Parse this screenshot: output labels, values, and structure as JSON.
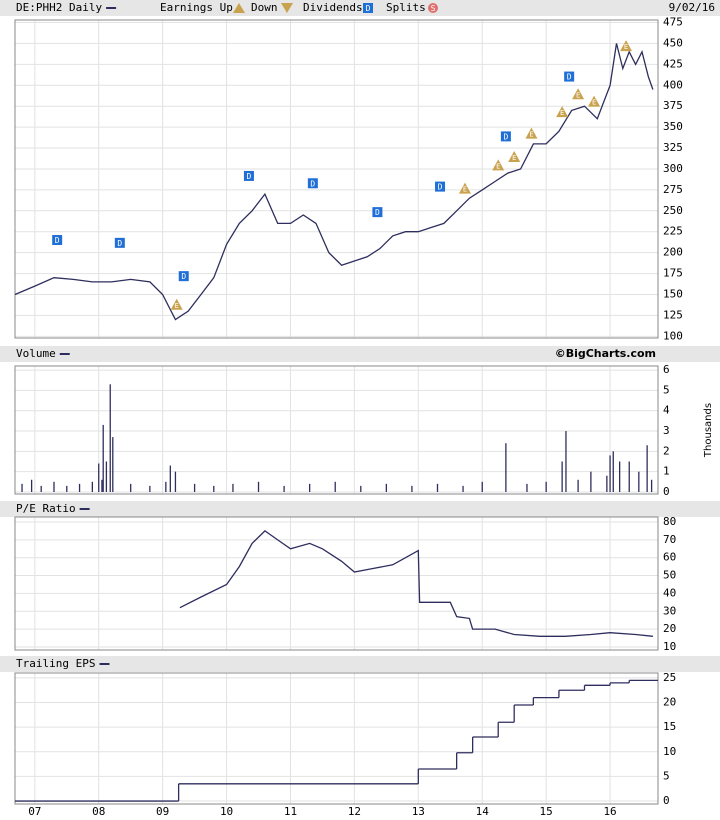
{
  "header": {
    "date": "9/02/16",
    "legend": {
      "earnings_up": "Earnings Up",
      "down": "Down",
      "dividends": "Dividends",
      "splits": "Splits"
    },
    "icons": {
      "earnings": "E",
      "dividend": "D",
      "split": "S"
    },
    "icon_colors": {
      "earnings": "#c9a24e",
      "dividend": "#1f6fd6",
      "split": "#e07070"
    }
  },
  "chart_data": [
    {
      "type": "line",
      "title": "DE:PHH2 Daily",
      "color": "#2e2e5e",
      "x": [
        2006.69,
        2007.0,
        2007.3,
        2007.6,
        2007.9,
        2008.2,
        2008.5,
        2008.8,
        2009.0,
        2009.2,
        2009.4,
        2009.6,
        2009.8,
        2010.0,
        2010.2,
        2010.4,
        2010.6,
        2010.8,
        2011.0,
        2011.2,
        2011.4,
        2011.6,
        2011.8,
        2012.0,
        2012.2,
        2012.4,
        2012.6,
        2012.8,
        2013.0,
        2013.2,
        2013.4,
        2013.6,
        2013.8,
        2014.0,
        2014.2,
        2014.4,
        2014.6,
        2014.8,
        2015.0,
        2015.2,
        2015.4,
        2015.6,
        2015.8,
        2016.0,
        2016.1,
        2016.2,
        2016.3,
        2016.4,
        2016.5,
        2016.6,
        2016.67
      ],
      "values": [
        150,
        160,
        170,
        168,
        165,
        165,
        168,
        165,
        150,
        120,
        130,
        150,
        170,
        210,
        235,
        250,
        270,
        235,
        235,
        245,
        235,
        200,
        185,
        190,
        195,
        205,
        220,
        225,
        225,
        230,
        235,
        250,
        265,
        275,
        285,
        295,
        300,
        330,
        330,
        345,
        370,
        375,
        360,
        400,
        450,
        420,
        440,
        425,
        440,
        410,
        395
      ],
      "dividends": [
        2007.35,
        2008.33,
        2009.33,
        2010.35,
        2011.35,
        2012.36,
        2013.34,
        2014.37,
        2015.36
      ],
      "earnings": [
        2009.22,
        2013.73,
        2014.25,
        2014.5,
        2014.77,
        2015.25,
        2015.5,
        2015.75,
        2016.25
      ],
      "xlim": [
        2006.69,
        2016.75
      ],
      "xticks": [
        2007,
        2008,
        2009,
        2010,
        2011,
        2012,
        2013,
        2014,
        2015,
        2016
      ],
      "ylim": [
        98,
        478
      ],
      "yticks": [
        100,
        125,
        150,
        175,
        200,
        225,
        250,
        275,
        300,
        325,
        350,
        375,
        400,
        425,
        450,
        475
      ],
      "grid": true
    },
    {
      "type": "bar",
      "title": "Volume",
      "credit": "©BigCharts.com",
      "y_label": "Thousands",
      "color": "#2e2e5e",
      "x": [
        2006.8,
        2006.95,
        2007.1,
        2007.3,
        2007.5,
        2007.7,
        2007.9,
        2008.0,
        2008.05,
        2008.07,
        2008.12,
        2008.18,
        2008.22,
        2008.5,
        2008.8,
        2009.05,
        2009.12,
        2009.2,
        2009.5,
        2009.8,
        2010.1,
        2010.5,
        2010.9,
        2011.3,
        2011.7,
        2012.1,
        2012.5,
        2012.9,
        2013.3,
        2013.7,
        2014.0,
        2014.37,
        2014.7,
        2015.0,
        2015.25,
        2015.31,
        2015.5,
        2015.7,
        2015.95,
        2016.0,
        2016.05,
        2016.15,
        2016.3,
        2016.45,
        2016.58,
        2016.65
      ],
      "values": [
        0.4,
        0.6,
        0.3,
        0.5,
        0.3,
        0.4,
        0.5,
        1.4,
        0.6,
        3.3,
        1.5,
        5.3,
        2.7,
        0.4,
        0.3,
        0.5,
        1.3,
        1.0,
        0.4,
        0.3,
        0.4,
        0.5,
        0.3,
        0.4,
        0.5,
        0.3,
        0.4,
        0.3,
        0.4,
        0.3,
        0.5,
        2.4,
        0.4,
        0.5,
        1.5,
        3.0,
        0.6,
        1.0,
        0.8,
        1.8,
        2.0,
        1.5,
        1.5,
        1.0,
        2.3,
        0.6
      ],
      "xlim": [
        2006.69,
        2016.75
      ],
      "xticks": [
        2007,
        2008,
        2009,
        2010,
        2011,
        2012,
        2013,
        2014,
        2015,
        2016
      ],
      "ylim": [
        -0.1,
        6.2
      ],
      "yticks": [
        0,
        1,
        2,
        3,
        4,
        5,
        6
      ],
      "grid": true
    },
    {
      "type": "line",
      "title": "P/E Ratio",
      "color": "#2e2e5e",
      "x": [
        2009.27,
        2009.6,
        2010.0,
        2010.2,
        2010.4,
        2010.6,
        2010.8,
        2011.0,
        2011.3,
        2011.5,
        2011.8,
        2012.0,
        2012.3,
        2012.6,
        2012.8,
        2013.0,
        2013.02,
        2013.5,
        2013.6,
        2013.8,
        2013.85,
        2014.2,
        2014.5,
        2014.9,
        2015.3,
        2015.7,
        2016.0,
        2016.4,
        2016.67
      ],
      "values": [
        32,
        38,
        45,
        55,
        68,
        75,
        70,
        65,
        68,
        65,
        58,
        52,
        54,
        56,
        60,
        64,
        35,
        35,
        27,
        26,
        20,
        20,
        17,
        16,
        16,
        17,
        18,
        17,
        16
      ],
      "xlim": [
        2006.69,
        2016.75
      ],
      "xticks": [
        2007,
        2008,
        2009,
        2010,
        2011,
        2012,
        2013,
        2014,
        2015,
        2016
      ],
      "ylim": [
        8.3,
        82.8
      ],
      "yticks": [
        10,
        20,
        30,
        40,
        50,
        60,
        70,
        80
      ],
      "grid": true
    },
    {
      "type": "step",
      "title": "Trailing EPS",
      "color": "#2e2e5e",
      "x": [
        2006.69,
        2009.25,
        2013.0,
        2013.6,
        2013.85,
        2014.25,
        2014.5,
        2014.8,
        2015.2,
        2015.6,
        2016.0,
        2016.3
      ],
      "values": [
        0,
        3.5,
        6.5,
        9.8,
        13,
        16,
        19.5,
        21,
        22.5,
        23.5,
        24,
        24.5
      ],
      "xlim": [
        2006.69,
        2016.75
      ],
      "xticks": [
        {
          "value": 2007,
          "label": "07"
        },
        {
          "value": 2008,
          "label": "08"
        },
        {
          "value": 2009,
          "label": "09"
        },
        {
          "value": 2010,
          "label": "10"
        },
        {
          "value": 2011,
          "label": "11"
        },
        {
          "value": 2012,
          "label": "12"
        },
        {
          "value": 2013,
          "label": "13"
        },
        {
          "value": 2014,
          "label": "14"
        },
        {
          "value": 2015,
          "label": "15"
        },
        {
          "value": 2016,
          "label": "16"
        }
      ],
      "ylim": [
        -0.6,
        26
      ],
      "yticks": [
        0,
        5,
        10,
        15,
        20,
        25
      ],
      "grid": true
    }
  ]
}
